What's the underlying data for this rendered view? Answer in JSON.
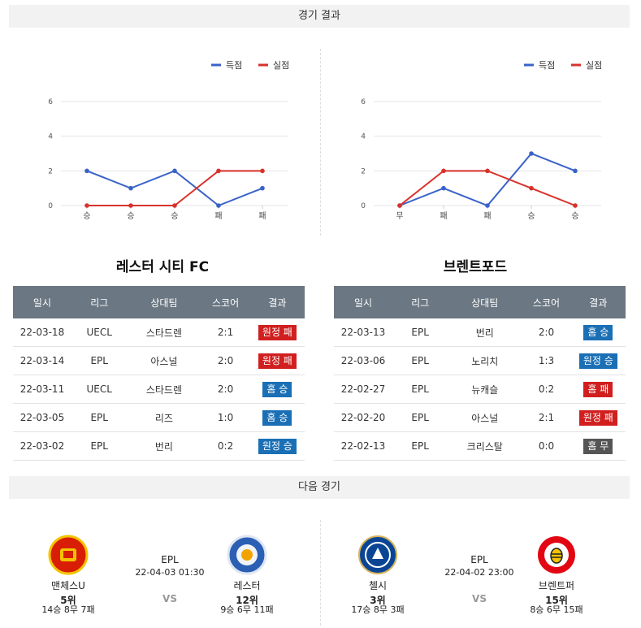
{
  "sections": {
    "results_title": "경기 결과",
    "next_title": "다음 경기"
  },
  "legend": {
    "scored": "득점",
    "conceded": "실점"
  },
  "colors": {
    "scored": "#3a63c8",
    "conceded": "#d8322b",
    "win": "#1a6fb5",
    "loss": "#d11f1f",
    "draw": "#555555"
  },
  "chart_data": [
    {
      "type": "line",
      "categories": [
        "승",
        "승",
        "승",
        "패",
        "패"
      ],
      "ylim": [
        0,
        6
      ],
      "yticks": [
        0,
        2,
        4,
        6
      ],
      "series": [
        {
          "name": "득점",
          "values": [
            2,
            1,
            2,
            0,
            1
          ]
        },
        {
          "name": "실점",
          "values": [
            0,
            0,
            0,
            2,
            2
          ]
        }
      ]
    },
    {
      "type": "line",
      "categories": [
        "무",
        "패",
        "패",
        "승",
        "승"
      ],
      "ylim": [
        0,
        6
      ],
      "yticks": [
        0,
        2,
        4,
        6
      ],
      "series": [
        {
          "name": "득점",
          "values": [
            0,
            1,
            0,
            3,
            2
          ]
        },
        {
          "name": "실점",
          "values": [
            0,
            2,
            2,
            1,
            0
          ]
        }
      ]
    }
  ],
  "teams": [
    {
      "name": "레스터 시티 FC",
      "headers": [
        "일시",
        "리그",
        "상대팀",
        "스코어",
        "결과"
      ],
      "rows": [
        {
          "date": "22-03-18",
          "league": "UECL",
          "opponent": "스타드렌",
          "score": "2:1",
          "result": "원정 패",
          "kind": "loss"
        },
        {
          "date": "22-03-14",
          "league": "EPL",
          "opponent": "아스널",
          "score": "2:0",
          "result": "원정 패",
          "kind": "loss"
        },
        {
          "date": "22-03-11",
          "league": "UECL",
          "opponent": "스타드렌",
          "score": "2:0",
          "result": "홈 승",
          "kind": "win"
        },
        {
          "date": "22-03-05",
          "league": "EPL",
          "opponent": "리즈",
          "score": "1:0",
          "result": "홈 승",
          "kind": "win"
        },
        {
          "date": "22-03-02",
          "league": "EPL",
          "opponent": "번리",
          "score": "0:2",
          "result": "원정 승",
          "kind": "win"
        }
      ]
    },
    {
      "name": "브렌트포드",
      "headers": [
        "일시",
        "리그",
        "상대팀",
        "스코어",
        "결과"
      ],
      "rows": [
        {
          "date": "22-03-13",
          "league": "EPL",
          "opponent": "번리",
          "score": "2:0",
          "result": "홈 승",
          "kind": "win"
        },
        {
          "date": "22-03-06",
          "league": "EPL",
          "opponent": "노리치",
          "score": "1:3",
          "result": "원정 승",
          "kind": "win"
        },
        {
          "date": "22-02-27",
          "league": "EPL",
          "opponent": "뉴캐슬",
          "score": "0:2",
          "result": "홈 패",
          "kind": "loss"
        },
        {
          "date": "22-02-20",
          "league": "EPL",
          "opponent": "아스널",
          "score": "2:1",
          "result": "원정 패",
          "kind": "loss"
        },
        {
          "date": "22-02-13",
          "league": "EPL",
          "opponent": "크리스탈",
          "score": "0:0",
          "result": "홈 무",
          "kind": "draw"
        }
      ]
    }
  ],
  "next_matches": [
    {
      "league": "EPL",
      "time": "22-04-03 01:30",
      "vs": "VS",
      "home": {
        "name": "맨체스U",
        "rank": "5위",
        "record": "14승 8무 7패",
        "crest_color": "#d81e05",
        "crest": "manutd-crest"
      },
      "away": {
        "name": "레스터",
        "rank": "12위",
        "record": "9승 6무 11패",
        "crest_color": "#2b5fb4",
        "crest": "leicester-crest"
      }
    },
    {
      "league": "EPL",
      "time": "22-04-02 23:00",
      "vs": "VS",
      "home": {
        "name": "첼시",
        "rank": "3위",
        "record": "17승 8무 3패",
        "crest_color": "#0a4595",
        "crest": "chelsea-crest"
      },
      "away": {
        "name": "브렌트퍼",
        "rank": "15위",
        "record": "8승 6무 15패",
        "crest_color": "#e30613",
        "crest": "brentford-crest"
      }
    }
  ]
}
